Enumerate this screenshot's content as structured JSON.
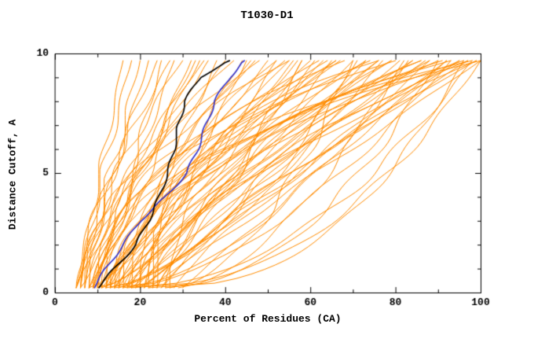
{
  "chart_data": {
    "type": "line",
    "title": "T1030-D1",
    "xlabel": "Percent of Residues (CA)",
    "ylabel": "Distance Cutoff, A",
    "xlim": [
      0,
      100
    ],
    "ylim": [
      0,
      10
    ],
    "x_ticks": [
      0,
      20,
      40,
      60,
      80,
      100
    ],
    "x_minor_step": 10,
    "y_ticks": [
      0,
      5,
      10
    ],
    "y_minor_step": 1,
    "grid": false,
    "legend": "none",
    "colors": {
      "orange": "#ff8c00",
      "black": "#000000",
      "blue": "#3333cc",
      "axis": "#000000",
      "background": "#ffffff"
    },
    "y_anchors": [
      0.2,
      1,
      2,
      3,
      4,
      5,
      6,
      7,
      8,
      9,
      9.7
    ],
    "highlight_series": [
      {
        "name": "model-blue",
        "color": "#3333cc",
        "width": 1.7,
        "x_at_anchors": [
          9,
          12,
          16,
          20,
          26,
          31,
          33.5,
          35.5,
          37.5,
          41,
          44.5
        ]
      },
      {
        "name": "model-black",
        "color": "#000000",
        "width": 1.7,
        "x_at_anchors": [
          10,
          14,
          19,
          22,
          24.5,
          26.5,
          28,
          29,
          30.5,
          34,
          41
        ]
      }
    ],
    "background_series": {
      "name": "all-models",
      "color": "#ff8c00",
      "width": 1,
      "param_format": [
        "x_start",
        "x_end",
        "shape_q",
        "wobble_amp",
        "wobble_phase"
      ],
      "curves": [
        [
          5,
          16,
          1.0,
          0.8,
          0.5
        ],
        [
          6,
          18,
          1.2,
          1.0,
          1.2
        ],
        [
          5,
          20,
          0.9,
          1.2,
          2.0
        ],
        [
          7,
          22,
          1.1,
          0.9,
          2.8
        ],
        [
          6,
          24,
          1.3,
          1.1,
          3.5
        ],
        [
          8,
          25,
          0.8,
          1.0,
          4.2
        ],
        [
          5,
          27,
          1.4,
          1.2,
          5.0
        ],
        [
          9,
          28,
          1.0,
          0.8,
          0.3
        ],
        [
          7,
          30,
          1.6,
          1.3,
          1.0
        ],
        [
          6,
          32,
          0.9,
          1.0,
          1.7
        ],
        [
          10,
          33,
          1.2,
          1.1,
          2.4
        ],
        [
          8,
          35,
          1.5,
          0.9,
          3.1
        ],
        [
          5,
          36,
          1.1,
          1.2,
          3.8
        ],
        [
          11,
          38,
          0.85,
          1.0,
          4.5
        ],
        [
          9,
          40,
          1.3,
          1.4,
          5.2
        ],
        [
          6,
          42,
          1.7,
          1.0,
          0.8
        ],
        [
          12,
          44,
          1.0,
          1.2,
          1.5
        ],
        [
          8,
          45,
          0.7,
          0.9,
          2.2
        ],
        [
          10,
          47,
          1.4,
          1.1,
          2.9
        ],
        [
          7,
          48,
          1.9,
          1.3,
          3.6
        ],
        [
          13,
          50,
          1.1,
          1.0,
          4.3
        ],
        [
          9,
          52,
          0.8,
          1.2,
          5.0
        ],
        [
          11,
          54,
          1.5,
          1.0,
          0.6
        ],
        [
          8,
          55,
          2.1,
          1.4,
          1.3
        ],
        [
          14,
          57,
          1.0,
          0.9,
          2.0
        ],
        [
          10,
          58,
          0.65,
          1.1,
          2.7
        ],
        [
          12,
          60,
          1.3,
          1.2,
          3.4
        ],
        [
          9,
          62,
          1.8,
          1.0,
          4.1
        ],
        [
          15,
          63,
          1.1,
          1.3,
          4.8
        ],
        [
          11,
          65,
          0.75,
          1.0,
          5.5
        ],
        [
          13,
          66,
          1.6,
          1.2,
          0.4
        ],
        [
          10,
          68,
          2.3,
          0.9,
          1.1
        ],
        [
          16,
          70,
          1.0,
          1.1,
          1.8
        ],
        [
          12,
          71,
          0.6,
          1.3,
          2.5
        ],
        [
          14,
          73,
          1.4,
          1.0,
          3.2
        ],
        [
          11,
          74,
          1.9,
          1.2,
          3.9
        ],
        [
          17,
          76,
          1.1,
          0.9,
          4.6
        ],
        [
          13,
          77,
          0.7,
          1.1,
          5.3
        ],
        [
          15,
          79,
          1.5,
          1.3,
          0.2
        ],
        [
          12,
          80,
          2.5,
          1.0,
          0.9
        ],
        [
          18,
          81,
          1.0,
          1.2,
          1.6
        ],
        [
          14,
          83,
          0.55,
          0.9,
          2.3
        ],
        [
          16,
          84,
          1.3,
          1.1,
          3.0
        ],
        [
          13,
          86,
          1.8,
          1.3,
          3.7
        ],
        [
          19,
          87,
          1.1,
          1.0,
          4.4
        ],
        [
          15,
          88,
          0.8,
          1.2,
          5.1
        ],
        [
          17,
          90,
          1.6,
          0.9,
          0.7
        ],
        [
          14,
          91,
          2.2,
          1.1,
          1.4
        ],
        [
          20,
          92,
          1.0,
          1.3,
          2.1
        ],
        [
          16,
          93,
          0.6,
          1.0,
          2.8
        ],
        [
          18,
          95,
          1.4,
          1.2,
          3.5
        ],
        [
          15,
          96,
          2.0,
          0.9,
          4.2
        ],
        [
          21,
          97,
          1.1,
          1.1,
          4.9
        ],
        [
          17,
          98,
          0.5,
          1.3,
          5.6
        ],
        [
          19,
          99,
          1.5,
          1.0,
          0.5
        ],
        [
          16,
          100,
          2.6,
          1.2,
          1.2
        ],
        [
          22,
          100,
          1.0,
          0.9,
          1.9
        ],
        [
          18,
          100,
          0.45,
          1.1,
          2.6
        ],
        [
          24,
          99,
          1.3,
          1.3,
          3.3
        ],
        [
          20,
          98,
          3.0,
          1.0,
          4.0
        ],
        [
          26,
          97,
          1.8,
          1.2,
          4.7
        ],
        [
          22,
          96,
          0.4,
          0.9,
          5.4
        ],
        [
          28,
          95,
          1.2,
          1.1,
          0.3
        ],
        [
          24,
          93,
          2.8,
          1.3,
          1.0
        ],
        [
          30,
          92,
          1.0,
          1.0,
          1.7
        ],
        [
          26,
          90,
          0.5,
          1.2,
          2.4
        ],
        [
          23,
          88,
          1.6,
          0.9,
          3.1
        ],
        [
          27,
          86,
          2.4,
          1.1,
          3.8
        ],
        [
          25,
          84,
          1.1,
          1.3,
          4.5
        ],
        [
          29,
          82,
          0.6,
          1.0,
          5.2
        ],
        [
          21,
          79,
          1.4,
          1.2,
          0.1
        ],
        [
          23,
          76,
          3.2,
          0.9,
          0.8
        ],
        [
          25,
          73,
          1.0,
          1.1,
          1.5
        ],
        [
          27,
          70,
          0.55,
          1.3,
          2.2
        ],
        [
          20,
          67,
          1.7,
          1.0,
          2.9
        ],
        [
          22,
          64,
          2.2,
          1.2,
          3.6
        ],
        [
          24,
          61,
          1.1,
          0.9,
          4.3
        ],
        [
          19,
          58,
          0.7,
          1.1,
          5.0
        ],
        [
          21,
          55,
          1.5,
          1.3,
          0.6
        ],
        [
          18,
          52,
          2.0,
          1.0,
          1.3
        ],
        [
          8,
          34,
          1.05,
          1.1,
          2.0
        ],
        [
          9,
          46,
          1.25,
          1.0,
          2.7
        ],
        [
          10,
          56,
          0.95,
          1.2,
          3.4
        ],
        [
          12,
          66,
          1.35,
          0.9,
          4.1
        ],
        [
          14,
          76,
          1.15,
          1.1,
          4.8
        ]
      ]
    }
  }
}
